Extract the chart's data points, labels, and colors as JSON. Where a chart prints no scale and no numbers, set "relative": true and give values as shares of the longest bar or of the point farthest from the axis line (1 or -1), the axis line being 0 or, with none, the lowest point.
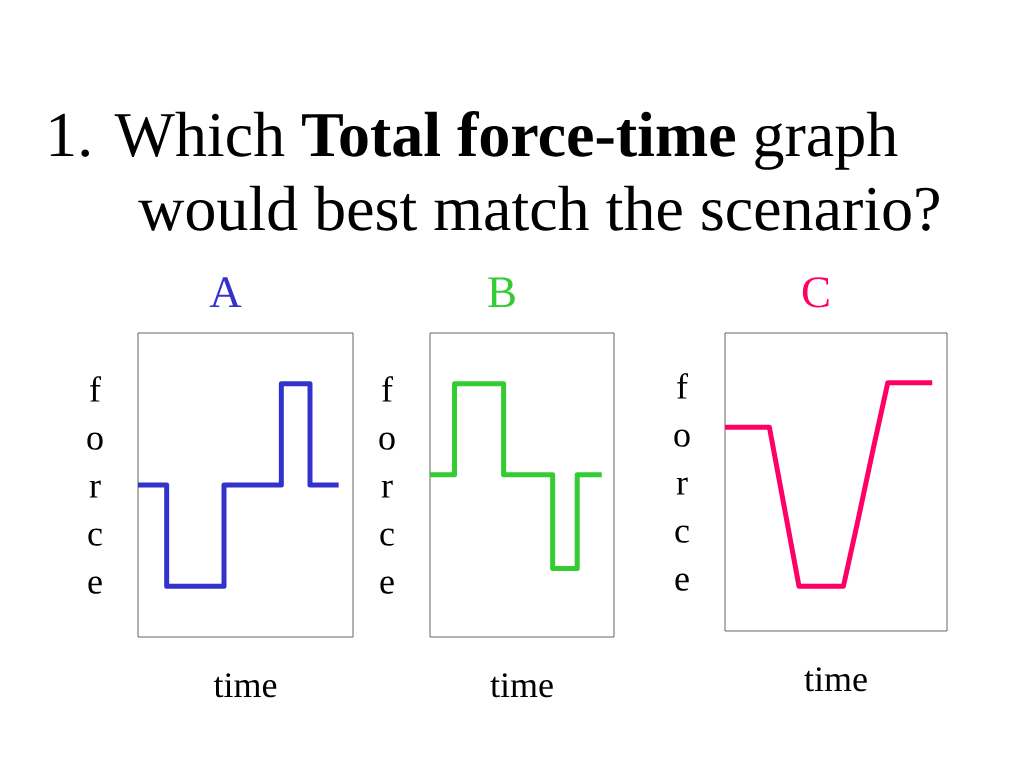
{
  "chart_data": [
    {
      "type": "other",
      "title": "1. Which **Total force-time** graph would best match the scenario?"
    },
    {
      "type": "step",
      "title": "A",
      "xlabel": "time",
      "ylabel": "force",
      "relative": true,
      "categories": [
        null,
        null,
        null,
        null,
        null,
        null,
        null,
        null,
        null,
        null,
        null,
        null,
        null,
        null,
        null
      ],
      "series": [
        {
          "color": "#3333cc",
          "values": [
            0.6,
            0.6,
            0.2,
            0.2,
            0.2,
            0.2,
            0.6,
            0.6,
            0.6,
            0.6,
            1,
            1,
            0.6,
            0.6,
            0.6
          ]
        }
      ]
    },
    {
      "type": "step",
      "title": "B",
      "xlabel": "time",
      "ylabel": "force",
      "relative": true,
      "categories": [
        null,
        null,
        null,
        null,
        null,
        null,
        null,
        null,
        null,
        null,
        null,
        null,
        null,
        null,
        null
      ],
      "series": [
        {
          "color": "#33cc33",
          "values": [
            0.64,
            0.64,
            1,
            1,
            1,
            1,
            0.64,
            0.64,
            0.64,
            0.64,
            0.27,
            0.27,
            0.64,
            0.64,
            0.64
          ]
        }
      ]
    },
    {
      "type": "line",
      "title": "C",
      "xlabel": "time",
      "ylabel": "force",
      "relative": true,
      "categories": [
        null,
        null,
        null,
        null,
        null,
        null,
        null,
        null,
        null,
        null,
        null,
        null,
        null,
        null,
        null
      ],
      "series": [
        {
          "color": "#ff0066",
          "values": [
            0.82,
            0.82,
            0.82,
            0.82,
            0.5,
            0.18,
            0.18,
            0.18,
            0.18,
            0.45,
            0.73,
            1,
            1,
            1,
            1
          ]
        }
      ]
    }
  ]
}
